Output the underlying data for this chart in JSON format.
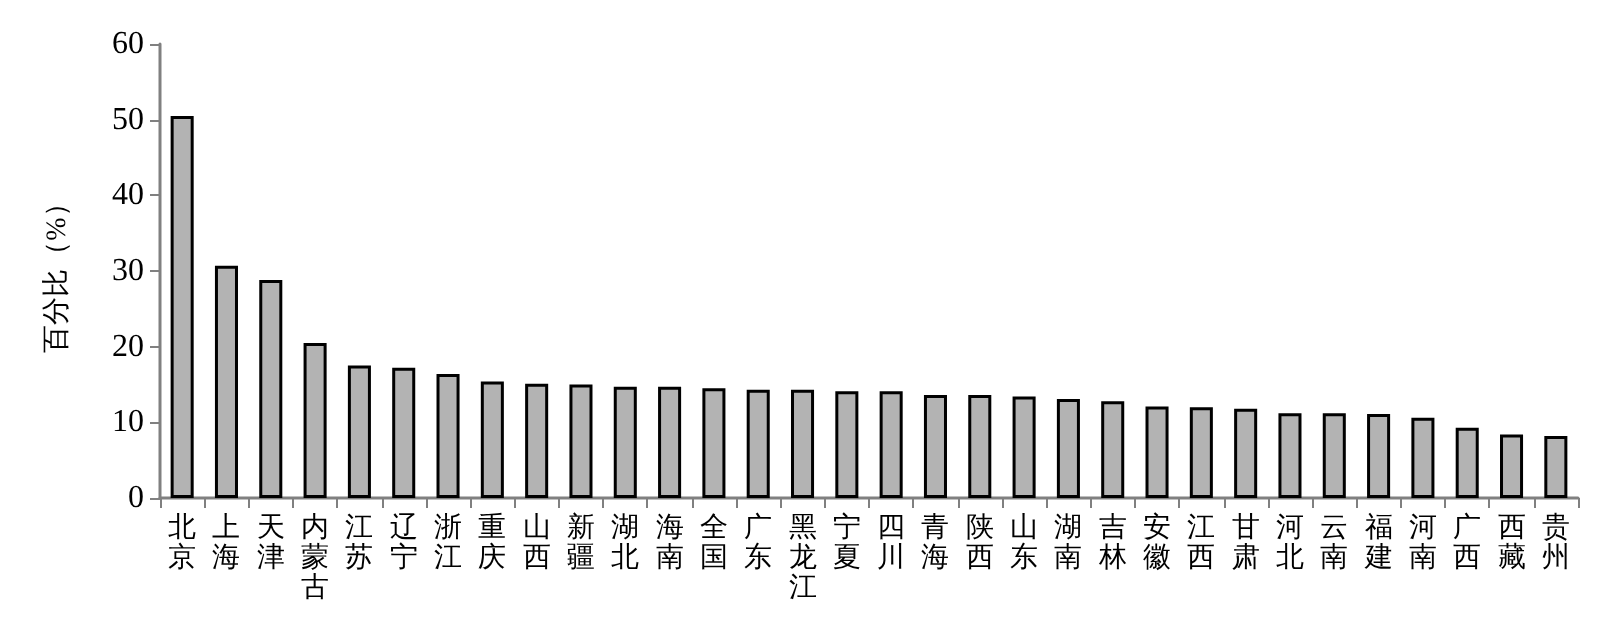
{
  "chart_data": {
    "type": "bar",
    "ylabel": "百分比（%）",
    "categories": [
      "北京",
      "上海",
      "天津",
      "内蒙古",
      "江苏",
      "辽宁",
      "浙江",
      "重庆",
      "山西",
      "新疆",
      "湖北",
      "海南",
      "全国",
      "广东",
      "黑龙江",
      "宁夏",
      "四川",
      "青海",
      "陕西",
      "山东",
      "湖南",
      "吉林",
      "安徽",
      "江西",
      "甘肃",
      "河北",
      "云南",
      "福建",
      "河南",
      "广西",
      "西藏",
      "贵州"
    ],
    "values": [
      50.5,
      30.7,
      28.8,
      20.5,
      17.5,
      17.2,
      16.4,
      15.4,
      15.1,
      15.0,
      14.7,
      14.7,
      14.5,
      14.3,
      14.3,
      14.1,
      14.1,
      13.6,
      13.6,
      13.4,
      13.1,
      12.8,
      12.1,
      12.0,
      11.8,
      11.2,
      11.2,
      11.1,
      10.6,
      9.3,
      8.4,
      8.2
    ],
    "color": "#b3b3b3",
    "ylim": [
      0,
      60
    ],
    "yticks": [
      0,
      10,
      20,
      30,
      40,
      50,
      60
    ],
    "grid": false
  }
}
